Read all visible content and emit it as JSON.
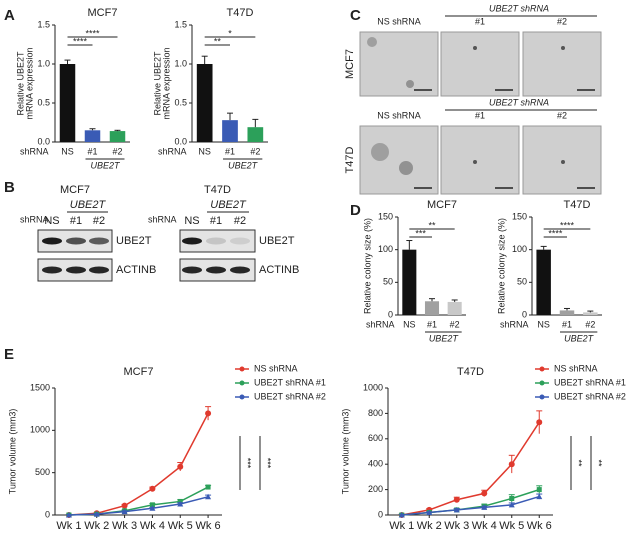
{
  "panel_labels": [
    "A",
    "B",
    "C",
    "D",
    "E"
  ],
  "blots": [
    {
      "title": "MCF7",
      "row_label": "shRNA",
      "group_label": "UBE2T",
      "lanes": [
        "NS",
        "#1",
        "#2"
      ],
      "bands": [
        "UBE2T",
        "ACTINB"
      ]
    },
    {
      "title": "T47D",
      "row_label": "shRNA",
      "group_label": "UBE2T",
      "lanes": [
        "NS",
        "#1",
        "#2"
      ],
      "bands": [
        "UBE2T",
        "ACTINB"
      ]
    }
  ],
  "colony_images": {
    "row_labels": [
      "MCF7",
      "T47D"
    ],
    "control_label": "NS shRNA",
    "group_label": "UBE2T shRNA",
    "columns": [
      "#1",
      "#2"
    ]
  },
  "chart_data": [
    {
      "type": "bar",
      "title": "MCF7",
      "y_label": [
        "Relative UBE2T",
        "mRNA expression"
      ],
      "row_label": "shRNA",
      "group_label": "UBE2T",
      "categories": [
        "NS",
        "#1",
        "#2"
      ],
      "values": [
        1.0,
        0.15,
        0.14
      ],
      "errors": [
        0.05,
        0.02,
        0.01
      ],
      "colors": [
        "#111111",
        "#3a5bb5",
        "#2ca05a"
      ],
      "ylim": [
        0,
        1.5
      ],
      "yticks": [
        {
          "value": 0,
          "label": "0.0"
        },
        0.5,
        {
          "value": 1,
          "label": "1.0"
        },
        1.5
      ],
      "significance": [
        "****",
        "****"
      ]
    },
    {
      "type": "bar",
      "title": "T47D",
      "y_label": [
        "Relative UBE2T",
        "mRNA expression"
      ],
      "row_label": "shRNA",
      "group_label": "UBE2T",
      "categories": [
        "NS",
        "#1",
        "#2"
      ],
      "values": [
        1.0,
        0.28,
        0.19
      ],
      "errors": [
        0.1,
        0.09,
        0.1
      ],
      "colors": [
        "#111111",
        "#3a5bb5",
        "#2ca05a"
      ],
      "ylim": [
        0,
        1.5
      ],
      "yticks": [
        {
          "value": 0,
          "label": "0.0"
        },
        0.5,
        {
          "value": 1,
          "label": "1.0"
        },
        1.5
      ],
      "significance": [
        "**",
        "*"
      ]
    },
    {
      "type": "bar",
      "title": "MCF7",
      "y_label": [
        "Relative colony size (%)"
      ],
      "row_label": "shRNA",
      "group_label": "UBE2T",
      "categories": [
        "NS",
        "#1",
        "#2"
      ],
      "values": [
        100,
        21,
        20
      ],
      "errors": [
        14,
        4,
        3
      ],
      "colors": [
        "#111111",
        "#a0a0a0",
        "#c8c8c8"
      ],
      "ylim": [
        0,
        150
      ],
      "yticks": [
        0,
        50,
        100,
        150
      ],
      "significance": [
        "***",
        "**"
      ]
    },
    {
      "type": "bar",
      "title": "T47D",
      "y_label": [
        "Relative colony size (%)"
      ],
      "row_label": "shRNA",
      "group_label": "UBE2T",
      "categories": [
        "NS",
        "#1",
        "#2"
      ],
      "values": [
        100,
        7,
        4
      ],
      "errors": [
        5,
        3,
        2
      ],
      "colors": [
        "#111111",
        "#a0a0a0",
        "#c8c8c8"
      ],
      "ylim": [
        0,
        150
      ],
      "yticks": [
        0,
        50,
        100,
        150
      ],
      "significance": [
        "****",
        "****"
      ]
    },
    {
      "type": "line",
      "title": "MCF7",
      "y_label": [
        "Tumor volume (mm3)"
      ],
      "categories": [
        "Wk 1",
        "Wk 2",
        "Wk 3",
        "Wk 4",
        "Wk 5",
        "Wk 6"
      ],
      "series": [
        {
          "name": "NS shRNA",
          "color": "#e03a2e",
          "values": [
            0,
            20,
            110,
            310,
            570,
            1200
          ],
          "errors": [
            5,
            10,
            15,
            20,
            50,
            80
          ]
        },
        {
          "name": "UBE2T shRNA #1",
          "color": "#2ca05a",
          "values": [
            0,
            10,
            50,
            120,
            160,
            330
          ],
          "errors": [
            5,
            5,
            10,
            15,
            20,
            20
          ]
        },
        {
          "name": "UBE2T shRNA #2",
          "color": "#3a5bb5",
          "values": [
            0,
            10,
            40,
            80,
            130,
            215
          ],
          "errors": [
            5,
            5,
            10,
            10,
            15,
            20
          ]
        }
      ],
      "ylim": [
        0,
        1500
      ],
      "yticks": [
        0,
        500,
        1000,
        1500
      ],
      "significance": [
        "***",
        "***"
      ]
    },
    {
      "type": "line",
      "title": "T47D",
      "y_label": [
        "Tumor volume (mm3)"
      ],
      "categories": [
        "Wk 1",
        "Wk 2",
        "Wk 3",
        "Wk 4",
        "Wk 5",
        "Wk 6"
      ],
      "series": [
        {
          "name": "NS shRNA",
          "color": "#e03a2e",
          "values": [
            0,
            40,
            120,
            170,
            400,
            730
          ],
          "errors": [
            5,
            10,
            20,
            25,
            70,
            90
          ]
        },
        {
          "name": "UBE2T shRNA #1",
          "color": "#2ca05a",
          "values": [
            0,
            20,
            40,
            70,
            130,
            200
          ],
          "errors": [
            5,
            5,
            10,
            15,
            30,
            30
          ]
        },
        {
          "name": "UBE2T shRNA #2",
          "color": "#3a5bb5",
          "values": [
            0,
            20,
            40,
            60,
            80,
            145
          ],
          "errors": [
            5,
            5,
            10,
            10,
            15,
            20
          ]
        }
      ],
      "ylim": [
        0,
        1000
      ],
      "yticks": [
        0,
        200,
        400,
        600,
        800,
        1000
      ],
      "significance": [
        "**",
        "**"
      ]
    }
  ]
}
